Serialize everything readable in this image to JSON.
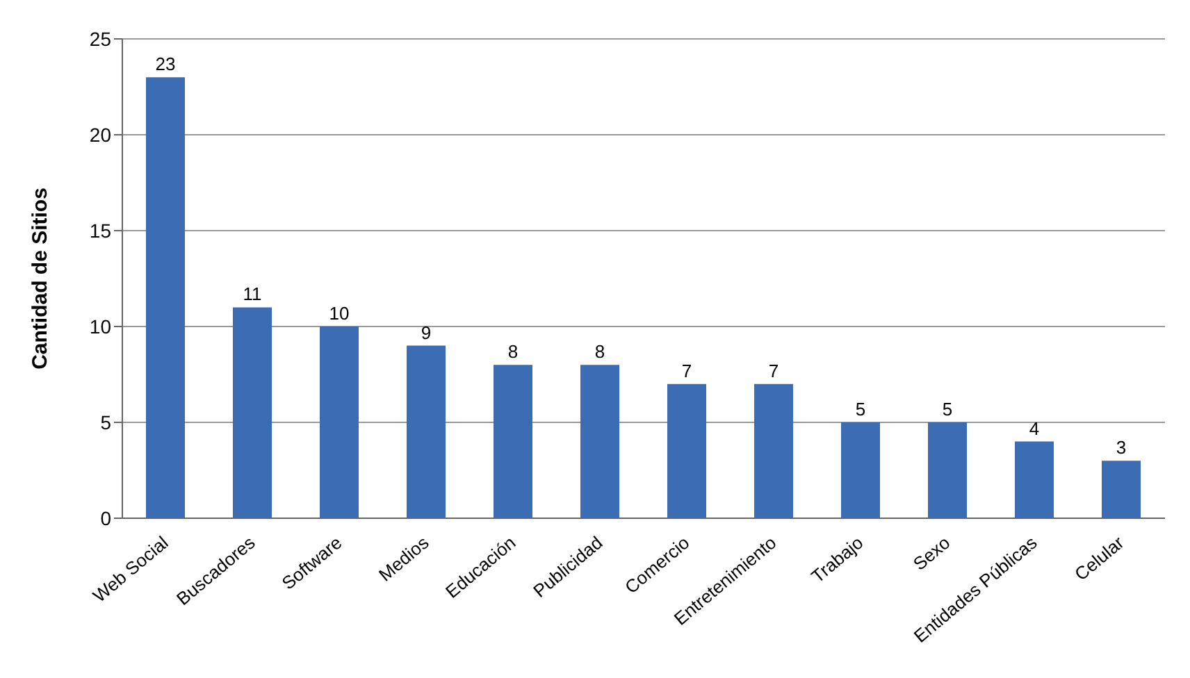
{
  "chart_data": {
    "type": "bar",
    "ylabel": "Cantidad de Sitios",
    "categories": [
      "Web Social",
      "Buscadores",
      "Software",
      "Medios",
      "Educación",
      "Publicidad",
      "Comercio",
      "Entretenimiento",
      "Trabajo",
      "Sexo",
      "Entidades Públicas",
      "Celular"
    ],
    "values": [
      23,
      11,
      10,
      9,
      8,
      8,
      7,
      7,
      5,
      5,
      4,
      3
    ],
    "color": "#3b6cb4",
    "ylim": [
      0,
      25
    ],
    "yticks": [
      0,
      5,
      10,
      15,
      20,
      25
    ],
    "grid": "y",
    "data_labels": true
  }
}
